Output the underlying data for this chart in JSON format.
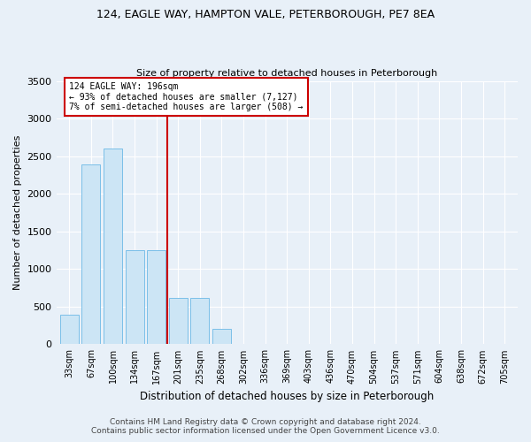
{
  "title1": "124, EAGLE WAY, HAMPTON VALE, PETERBOROUGH, PE7 8EA",
  "title2": "Size of property relative to detached houses in Peterborough",
  "xlabel": "Distribution of detached houses by size in Peterborough",
  "ylabel": "Number of detached properties",
  "categories": [
    "33sqm",
    "67sqm",
    "100sqm",
    "134sqm",
    "167sqm",
    "201sqm",
    "235sqm",
    "268sqm",
    "302sqm",
    "336sqm",
    "369sqm",
    "403sqm",
    "436sqm",
    "470sqm",
    "504sqm",
    "537sqm",
    "571sqm",
    "604sqm",
    "638sqm",
    "672sqm",
    "705sqm"
  ],
  "values": [
    390,
    2390,
    2600,
    1250,
    1250,
    620,
    620,
    200,
    0,
    0,
    0,
    0,
    0,
    0,
    0,
    0,
    0,
    0,
    0,
    0,
    0
  ],
  "bar_color": "#cce5f5",
  "bar_edge_color": "#7bbfe8",
  "property_line_x": 4.5,
  "property_label": "124 EAGLE WAY: 196sqm",
  "annotation_line1": "← 93% of detached houses are smaller (7,127)",
  "annotation_line2": "7% of semi-detached houses are larger (508) →",
  "annotation_box_color": "#ffffff",
  "annotation_box_edge": "#cc0000",
  "line_color": "#cc0000",
  "ylim": [
    0,
    3500
  ],
  "yticks": [
    0,
    500,
    1000,
    1500,
    2000,
    2500,
    3000,
    3500
  ],
  "footer1": "Contains HM Land Registry data © Crown copyright and database right 2024.",
  "footer2": "Contains public sector information licensed under the Open Government Licence v3.0.",
  "bg_color": "#e8f0f8",
  "plot_bg_color": "#e8f0f8"
}
